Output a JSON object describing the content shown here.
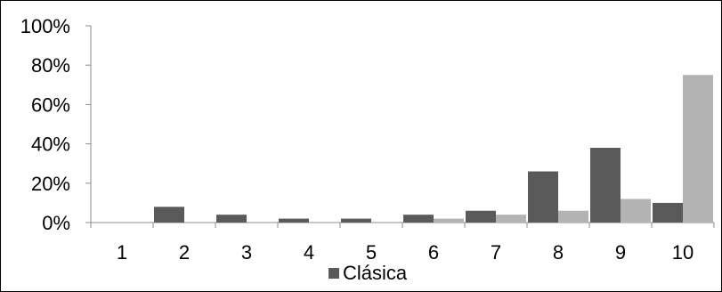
{
  "chart_data": {
    "type": "bar",
    "categories": [
      "1",
      "2",
      "3",
      "4",
      "5",
      "6",
      "7",
      "8",
      "9",
      "10"
    ],
    "series": [
      {
        "name": "Clásica",
        "values": [
          0,
          8,
          4,
          2,
          2,
          4,
          6,
          26,
          38,
          10
        ],
        "color": "#5a5a5a"
      },
      {
        "values": [
          0,
          0,
          0,
          0,
          0,
          2,
          4,
          6,
          12,
          75
        ],
        "color": "#b3b3b3"
      }
    ],
    "ylim": [
      0,
      100
    ],
    "yticks": [
      0,
      20,
      40,
      60,
      80,
      100
    ],
    "ytick_labels": [
      "0%",
      "20%",
      "40%",
      "60%",
      "80%",
      "100%"
    ],
    "grid": false,
    "legend_position": "bottom",
    "axis_color": "#8c8c8c"
  }
}
